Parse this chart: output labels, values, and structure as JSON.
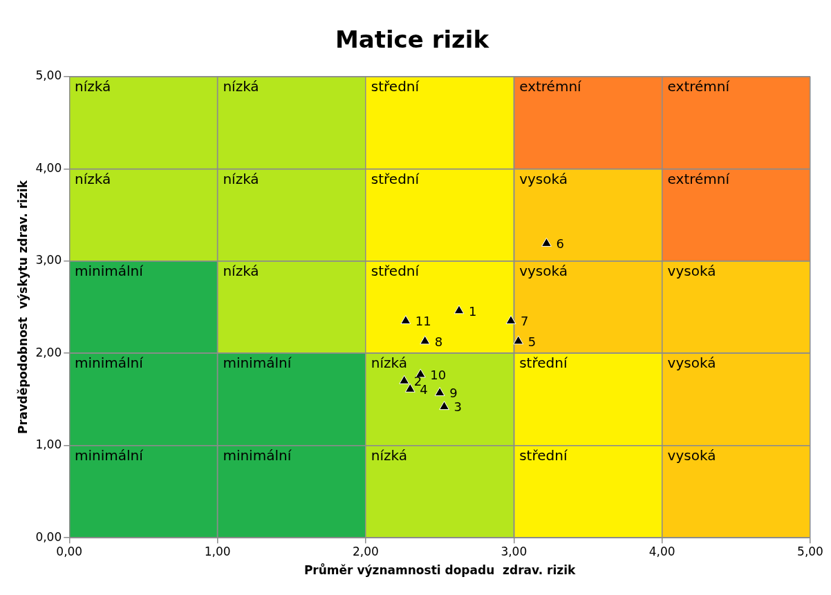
{
  "chart_data": [
    {
      "type": "bar",
      "orientation": "horizontal",
      "stacked": true,
      "categories": [
        null,
        null,
        null,
        null,
        null
      ],
      "xlim": [
        0,
        5
      ],
      "tick_labels": false,
      "series": [
        {
          "values": [
            1,
            1,
            1,
            1,
            1
          ],
          "colors": [
            "#b5e61d",
            "#b5e61d",
            "#22b14c",
            "#22b14c",
            "#22b14c"
          ],
          "value_labels": [
            "nízká",
            "nízká",
            "minimální",
            "minimální",
            "minimální"
          ]
        },
        {
          "values": [
            1,
            1,
            1,
            1,
            1
          ],
          "colors": [
            "#b5e61d",
            "#b5e61d",
            "#b5e61d",
            "#22b14c",
            "#22b14c"
          ],
          "value_labels": [
            "nízká",
            "nízká",
            "nízká",
            "minimální",
            "minimální"
          ]
        },
        {
          "values": [
            1,
            1,
            1,
            1,
            1
          ],
          "colors": [
            "#fff200",
            "#fff200",
            "#fff200",
            "#b5e61d",
            "#b5e61d"
          ],
          "value_labels": [
            "střední",
            "střední",
            "střední",
            "nízká",
            "nízká"
          ]
        },
        {
          "values": [
            1,
            1,
            1,
            1,
            1
          ],
          "colors": [
            "#ff7f27",
            "#ffc90e",
            "#ffc90e",
            "#fff200",
            "#fff200"
          ],
          "value_labels": [
            "extrémní",
            "vysoká",
            "vysoká",
            "střední",
            "střední"
          ]
        },
        {
          "values": [
            1,
            1,
            1,
            1,
            1
          ],
          "colors": [
            "#ff7f27",
            "#ff7f27",
            "#ffc90e",
            "#ffc90e",
            "#ffc90e"
          ],
          "value_labels": [
            "extrémní",
            "extrémní",
            "vysoká",
            "vysoká",
            "vysoká"
          ]
        }
      ]
    },
    {
      "type": "scatter",
      "title": "Matice rizik",
      "xlabel": "Průměr významnosti dopadu  zdrav. rizik",
      "ylabel": "Pravděpodobnost  výskytu zdrav. rizik",
      "xlim": [
        0,
        5
      ],
      "ylim": [
        0,
        5
      ],
      "xticks": [
        {
          "value": 0,
          "label": "0,00"
        },
        {
          "value": 1,
          "label": "1,00"
        },
        {
          "value": 2,
          "label": "2,00"
        },
        {
          "value": 3,
          "label": "3,00"
        },
        {
          "value": 4,
          "label": "4,00"
        },
        {
          "value": 5,
          "label": "5,00"
        }
      ],
      "yticks": [
        {
          "value": 0,
          "label": "0,00"
        },
        {
          "value": 1,
          "label": "1,00"
        },
        {
          "value": 2,
          "label": "2,00"
        },
        {
          "value": 3,
          "label": "3,00"
        },
        {
          "value": 4,
          "label": "4,00"
        },
        {
          "value": 5,
          "label": "5,00"
        }
      ],
      "grid": true,
      "marker": "triangle",
      "series": [
        {
          "color": "#000000",
          "x": [
            2.63,
            2.26,
            2.53,
            2.3,
            3.03,
            3.22,
            2.98,
            2.4,
            2.5,
            2.37,
            2.27
          ],
          "values": [
            2.46,
            1.7,
            1.42,
            1.61,
            2.13,
            3.19,
            2.35,
            2.13,
            1.57,
            1.77,
            2.35
          ]
        }
      ],
      "annotations": [
        {
          "text": "1",
          "x": 2.63,
          "y": 2.46
        },
        {
          "text": "2",
          "x": 2.26,
          "y": 1.7
        },
        {
          "text": "3",
          "x": 2.53,
          "y": 1.42
        },
        {
          "text": "4",
          "x": 2.3,
          "y": 1.61
        },
        {
          "text": "5",
          "x": 3.03,
          "y": 2.13
        },
        {
          "text": "6",
          "x": 3.22,
          "y": 3.19
        },
        {
          "text": "7",
          "x": 2.98,
          "y": 2.35
        },
        {
          "text": "8",
          "x": 2.4,
          "y": 2.13
        },
        {
          "text": "9",
          "x": 2.5,
          "y": 1.57
        },
        {
          "text": "10",
          "x": 2.37,
          "y": 1.77
        },
        {
          "text": "11",
          "x": 2.27,
          "y": 2.35
        }
      ]
    }
  ]
}
